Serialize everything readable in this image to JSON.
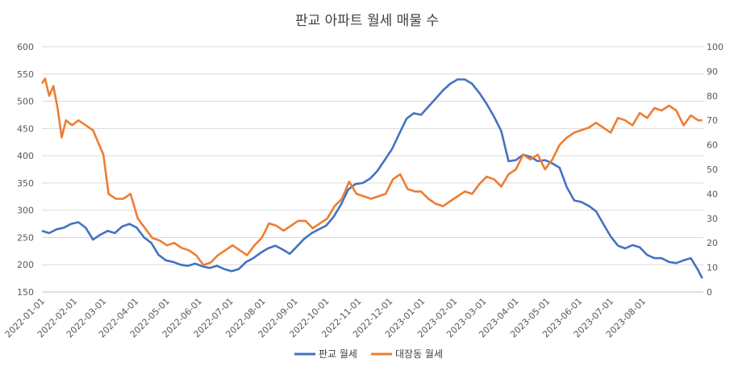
{
  "chart_data": {
    "type": "line",
    "title": "판교 아파트 월세 매물 수",
    "xlabel": "",
    "ylabel": "",
    "x_tick_labels": [
      "2022-01-01",
      "2022-02-01",
      "2022-03-01",
      "2022-04-01",
      "2022-05-01",
      "2022-06-01",
      "2022-07-01",
      "2022-08-01",
      "2022-09-01",
      "2022-10-01",
      "2022-11-01",
      "2022-12-01",
      "2023-01-01",
      "2023-02-01",
      "2023-03-01",
      "2023-04-01",
      "2023-05-01",
      "2023-06-01",
      "2023-07-01",
      "2023-08-01"
    ],
    "y_left": {
      "ylim": [
        150,
        600
      ],
      "ticks": [
        150,
        200,
        250,
        300,
        350,
        400,
        450,
        500,
        550,
        600
      ]
    },
    "y_right": {
      "ylim": [
        0,
        100
      ],
      "ticks": [
        0,
        10,
        20,
        30,
        40,
        50,
        60,
        70,
        80,
        90,
        100
      ]
    },
    "grid": true,
    "legend_position": "bottom",
    "series": [
      {
        "name": "판교 월세",
        "axis": "left",
        "color": "#4472C4",
        "points": [
          [
            "2022-01-01",
            262
          ],
          [
            "2022-01-08",
            258
          ],
          [
            "2022-01-15",
            265
          ],
          [
            "2022-01-22",
            268
          ],
          [
            "2022-01-29",
            275
          ],
          [
            "2022-02-05",
            278
          ],
          [
            "2022-02-12",
            268
          ],
          [
            "2022-02-19",
            246
          ],
          [
            "2022-02-26",
            255
          ],
          [
            "2022-03-05",
            262
          ],
          [
            "2022-03-12",
            258
          ],
          [
            "2022-03-19",
            270
          ],
          [
            "2022-03-26",
            275
          ],
          [
            "2022-04-02",
            268
          ],
          [
            "2022-04-09",
            250
          ],
          [
            "2022-04-16",
            240
          ],
          [
            "2022-04-23",
            218
          ],
          [
            "2022-04-30",
            208
          ],
          [
            "2022-05-07",
            205
          ],
          [
            "2022-05-14",
            200
          ],
          [
            "2022-05-21",
            198
          ],
          [
            "2022-05-28",
            202
          ],
          [
            "2022-06-04",
            197
          ],
          [
            "2022-06-11",
            194
          ],
          [
            "2022-06-18",
            198
          ],
          [
            "2022-06-25",
            192
          ],
          [
            "2022-07-02",
            188
          ],
          [
            "2022-07-09",
            192
          ],
          [
            "2022-07-16",
            205
          ],
          [
            "2022-07-23",
            212
          ],
          [
            "2022-07-30",
            222
          ],
          [
            "2022-08-06",
            230
          ],
          [
            "2022-08-13",
            235
          ],
          [
            "2022-08-20",
            228
          ],
          [
            "2022-08-27",
            220
          ],
          [
            "2022-09-03",
            234
          ],
          [
            "2022-09-10",
            248
          ],
          [
            "2022-09-17",
            258
          ],
          [
            "2022-09-24",
            265
          ],
          [
            "2022-10-01",
            272
          ],
          [
            "2022-10-08",
            288
          ],
          [
            "2022-10-15",
            310
          ],
          [
            "2022-10-22",
            338
          ],
          [
            "2022-10-29",
            348
          ],
          [
            "2022-11-05",
            350
          ],
          [
            "2022-11-12",
            358
          ],
          [
            "2022-11-19",
            372
          ],
          [
            "2022-11-26",
            392
          ],
          [
            "2022-12-03",
            412
          ],
          [
            "2022-12-10",
            440
          ],
          [
            "2022-12-17",
            468
          ],
          [
            "2022-12-24",
            478
          ],
          [
            "2022-12-31",
            475
          ],
          [
            "2023-01-07",
            490
          ],
          [
            "2023-01-14",
            505
          ],
          [
            "2023-01-21",
            520
          ],
          [
            "2023-01-28",
            532
          ],
          [
            "2023-02-04",
            540
          ],
          [
            "2023-02-11",
            540
          ],
          [
            "2023-02-18",
            532
          ],
          [
            "2023-02-25",
            515
          ],
          [
            "2023-03-04",
            495
          ],
          [
            "2023-03-11",
            472
          ],
          [
            "2023-03-18",
            445
          ],
          [
            "2023-03-25",
            390
          ],
          [
            "2023-04-01",
            392
          ],
          [
            "2023-04-08",
            402
          ],
          [
            "2023-04-15",
            398
          ],
          [
            "2023-04-22",
            390
          ],
          [
            "2023-04-29",
            392
          ],
          [
            "2023-05-06",
            386
          ],
          [
            "2023-05-13",
            378
          ],
          [
            "2023-05-20",
            342
          ],
          [
            "2023-05-27",
            318
          ],
          [
            "2023-06-03",
            315
          ],
          [
            "2023-06-10",
            308
          ],
          [
            "2023-06-17",
            298
          ],
          [
            "2023-06-24",
            275
          ],
          [
            "2023-07-01",
            252
          ],
          [
            "2023-07-08",
            235
          ],
          [
            "2023-07-15",
            230
          ],
          [
            "2023-07-22",
            236
          ],
          [
            "2023-07-29",
            232
          ],
          [
            "2023-08-05",
            218
          ],
          [
            "2023-08-12",
            212
          ],
          [
            "2023-08-19",
            212
          ],
          [
            "2023-08-26",
            205
          ],
          [
            "2023-09-02",
            203
          ],
          [
            "2023-09-09",
            208
          ],
          [
            "2023-09-16",
            212
          ],
          [
            "2023-09-23",
            190
          ],
          [
            "2023-09-27",
            175
          ]
        ]
      },
      {
        "name": "대장동 월세",
        "axis": "right",
        "color": "#ED7D31",
        "points": [
          [
            "2022-01-01",
            85
          ],
          [
            "2022-01-04",
            87
          ],
          [
            "2022-01-08",
            80
          ],
          [
            "2022-01-12",
            84
          ],
          [
            "2022-01-16",
            75
          ],
          [
            "2022-01-20",
            63
          ],
          [
            "2022-01-24",
            70
          ],
          [
            "2022-01-30",
            68
          ],
          [
            "2022-02-05",
            70
          ],
          [
            "2022-02-12",
            68
          ],
          [
            "2022-02-19",
            66
          ],
          [
            "2022-02-24",
            61
          ],
          [
            "2022-03-01",
            56
          ],
          [
            "2022-03-06",
            40
          ],
          [
            "2022-03-13",
            38
          ],
          [
            "2022-03-20",
            38
          ],
          [
            "2022-03-27",
            40
          ],
          [
            "2022-04-03",
            30
          ],
          [
            "2022-04-10",
            26
          ],
          [
            "2022-04-17",
            22
          ],
          [
            "2022-04-24",
            21
          ],
          [
            "2022-05-01",
            19
          ],
          [
            "2022-05-08",
            20
          ],
          [
            "2022-05-15",
            18
          ],
          [
            "2022-05-22",
            17
          ],
          [
            "2022-05-29",
            15
          ],
          [
            "2022-06-05",
            11
          ],
          [
            "2022-06-12",
            12
          ],
          [
            "2022-06-19",
            15
          ],
          [
            "2022-06-26",
            17
          ],
          [
            "2022-07-03",
            19
          ],
          [
            "2022-07-10",
            17
          ],
          [
            "2022-07-17",
            15
          ],
          [
            "2022-07-24",
            19
          ],
          [
            "2022-07-31",
            22
          ],
          [
            "2022-08-07",
            28
          ],
          [
            "2022-08-14",
            27
          ],
          [
            "2022-08-21",
            25
          ],
          [
            "2022-08-28",
            27
          ],
          [
            "2022-09-04",
            29
          ],
          [
            "2022-09-11",
            29
          ],
          [
            "2022-09-18",
            26
          ],
          [
            "2022-09-25",
            28
          ],
          [
            "2022-10-02",
            30
          ],
          [
            "2022-10-09",
            35
          ],
          [
            "2022-10-16",
            38
          ],
          [
            "2022-10-23",
            45
          ],
          [
            "2022-10-30",
            40
          ],
          [
            "2022-11-06",
            39
          ],
          [
            "2022-11-13",
            38
          ],
          [
            "2022-11-20",
            39
          ],
          [
            "2022-11-27",
            40
          ],
          [
            "2022-12-04",
            46
          ],
          [
            "2022-12-11",
            48
          ],
          [
            "2022-12-18",
            42
          ],
          [
            "2022-12-25",
            41
          ],
          [
            "2022-12-31",
            41
          ],
          [
            "2023-01-07",
            38
          ],
          [
            "2023-01-14",
            36
          ],
          [
            "2023-01-21",
            35
          ],
          [
            "2023-01-28",
            37
          ],
          [
            "2023-02-04",
            39
          ],
          [
            "2023-02-11",
            41
          ],
          [
            "2023-02-18",
            40
          ],
          [
            "2023-02-25",
            44
          ],
          [
            "2023-03-04",
            47
          ],
          [
            "2023-03-11",
            46
          ],
          [
            "2023-03-18",
            43
          ],
          [
            "2023-03-25",
            48
          ],
          [
            "2023-04-01",
            50
          ],
          [
            "2023-04-08",
            56
          ],
          [
            "2023-04-15",
            54
          ],
          [
            "2023-04-22",
            56
          ],
          [
            "2023-04-29",
            50
          ],
          [
            "2023-05-06",
            54
          ],
          [
            "2023-05-13",
            60
          ],
          [
            "2023-05-20",
            63
          ],
          [
            "2023-05-27",
            65
          ],
          [
            "2023-06-03",
            66
          ],
          [
            "2023-06-10",
            67
          ],
          [
            "2023-06-17",
            69
          ],
          [
            "2023-06-24",
            67
          ],
          [
            "2023-07-01",
            65
          ],
          [
            "2023-07-08",
            71
          ],
          [
            "2023-07-15",
            70
          ],
          [
            "2023-07-22",
            68
          ],
          [
            "2023-07-29",
            73
          ],
          [
            "2023-08-05",
            71
          ],
          [
            "2023-08-12",
            75
          ],
          [
            "2023-08-19",
            74
          ],
          [
            "2023-08-26",
            76
          ],
          [
            "2023-09-02",
            74
          ],
          [
            "2023-09-09",
            68
          ],
          [
            "2023-09-16",
            72
          ],
          [
            "2023-09-23",
            70
          ],
          [
            "2023-09-27",
            70
          ]
        ]
      }
    ]
  }
}
